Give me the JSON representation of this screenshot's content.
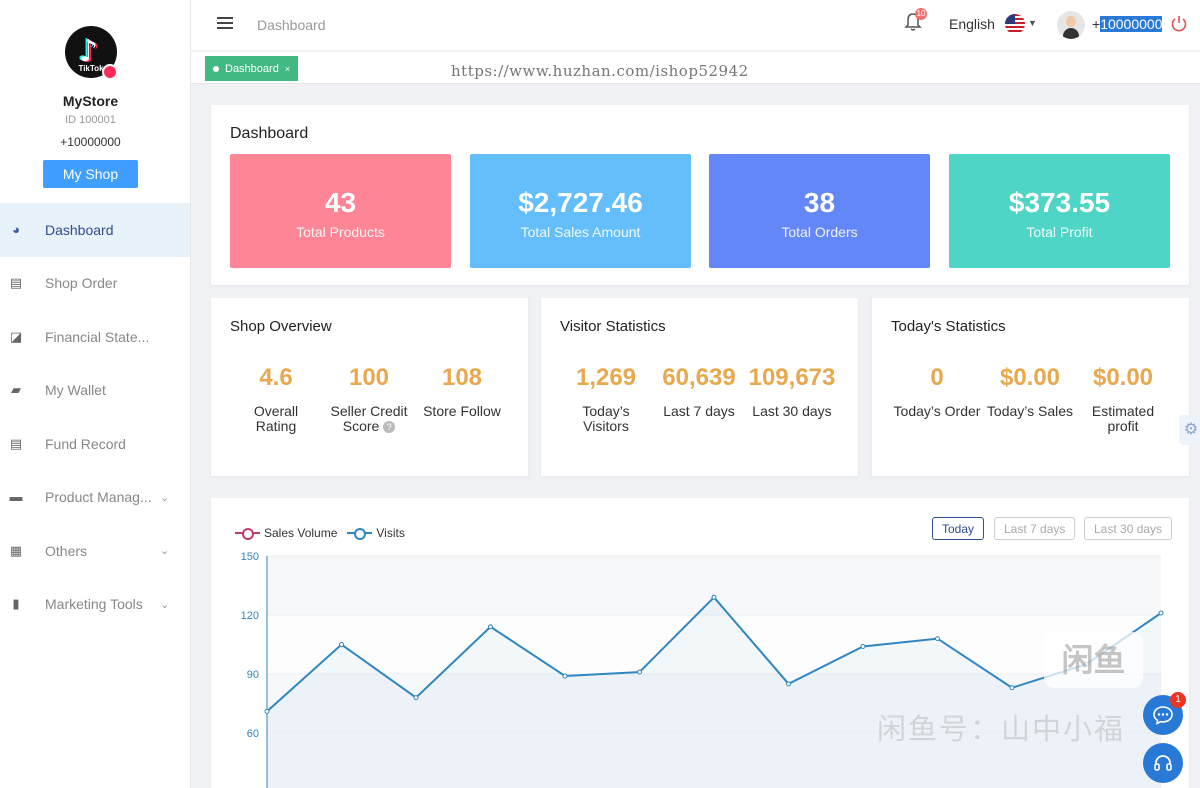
{
  "sidebar": {
    "logo_brand": "TikTok",
    "store_name": "MyStore",
    "store_id": "ID 100001",
    "store_phone": "+10000000",
    "my_shop_label": "My Shop",
    "items": [
      {
        "label": "Dashboard",
        "icon": "dashboard-icon",
        "active": true
      },
      {
        "label": "Shop Order",
        "icon": "clipboard-icon"
      },
      {
        "label": "Financial State...",
        "icon": "line-chart-icon"
      },
      {
        "label": "My Wallet",
        "icon": "wallet-icon"
      },
      {
        "label": "Fund Record",
        "icon": "document-icon"
      },
      {
        "label": "Product Manag...",
        "icon": "briefcase-icon",
        "expandable": true
      },
      {
        "label": "Others",
        "icon": "grid-icon",
        "expandable": true
      },
      {
        "label": "Marketing Tools",
        "icon": "bar-chart-icon",
        "expandable": true
      }
    ]
  },
  "header": {
    "breadcrumb": "Dashboard",
    "notification_count": "10",
    "language": "English",
    "phone_prefix": "+",
    "phone_highlight": "10000000"
  },
  "tabs": {
    "active_tab": "Dashboard",
    "close": "×",
    "watermark_url": "https://www.huzhan.com/ishop52942"
  },
  "dashboard": {
    "title": "Dashboard",
    "stats": [
      {
        "value": "43",
        "label": "Total Products",
        "color": "#fe8596"
      },
      {
        "value": "$2,727.46",
        "label": "Total Sales Amount",
        "color": "#64befc"
      },
      {
        "value": "38",
        "label": "Total Orders",
        "color": "#6487f8"
      },
      {
        "value": "$373.55",
        "label": "Total Profit",
        "color": "#4fd5c5"
      }
    ]
  },
  "shop_overview": {
    "title": "Shop Overview",
    "metrics": [
      {
        "value": "4.6",
        "label": "Overall Rating"
      },
      {
        "value": "100",
        "label": "Seller Credit Score",
        "help": "?"
      },
      {
        "value": "108",
        "label": "Store Follow"
      }
    ]
  },
  "visitor_statistics": {
    "title": "Visitor Statistics",
    "metrics": [
      {
        "value": "1,269",
        "label": "Today’s Visitors"
      },
      {
        "value": "60,639",
        "label": "Last 7 days"
      },
      {
        "value": "109,673",
        "label": "Last 30 days"
      }
    ]
  },
  "todays_statistics": {
    "title": "Today's Statistics",
    "metrics": [
      {
        "value": "0",
        "label": "Today’s Order"
      },
      {
        "value": "$0.00",
        "label": "Today’s Sales"
      },
      {
        "value": "$0.00",
        "label": "Estimated profit"
      }
    ]
  },
  "chart_controls": {
    "ranges": [
      "Today",
      "Last 7 days",
      "Last 30 days"
    ],
    "active_range": "Today"
  },
  "chart_data": {
    "type": "line",
    "series": [
      {
        "name": "Sales Volume",
        "color": "#c23a6b",
        "values": []
      },
      {
        "name": "Visits",
        "color": "#2f86c1",
        "values": [
          71,
          105,
          78,
          114,
          89,
          91,
          129,
          85,
          104,
          108,
          83,
          95,
          121
        ]
      }
    ],
    "y_ticks": [
      60,
      90,
      120,
      150
    ],
    "ylim": [
      60,
      150
    ],
    "grid": true,
    "legend_position": "top-left"
  },
  "floating": {
    "chat_badge": "1",
    "watermark_logo": "闲鱼",
    "watermark_text": "闲鱼号：山中小福"
  },
  "colors": {
    "accent": "#409eff",
    "tab_green": "#42b983",
    "metric_orange": "#e8a84e",
    "nav_active_bg": "#e8f2fb"
  }
}
